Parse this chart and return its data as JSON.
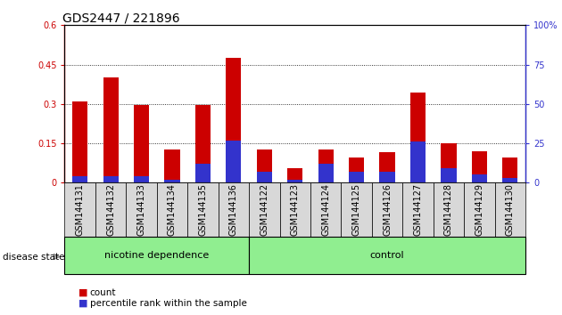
{
  "title": "GDS2447 / 221896",
  "samples": [
    "GSM144131",
    "GSM144132",
    "GSM144133",
    "GSM144134",
    "GSM144135",
    "GSM144136",
    "GSM144122",
    "GSM144123",
    "GSM144124",
    "GSM144125",
    "GSM144126",
    "GSM144127",
    "GSM144128",
    "GSM144129",
    "GSM144130"
  ],
  "count_values": [
    0.31,
    0.4,
    0.295,
    0.125,
    0.295,
    0.475,
    0.125,
    0.055,
    0.125,
    0.095,
    0.115,
    0.345,
    0.15,
    0.12,
    0.095
  ],
  "percentile_values": [
    4,
    4,
    4,
    2,
    12,
    27,
    7,
    2,
    12,
    7,
    7,
    26,
    9,
    5,
    3
  ],
  "groups": [
    {
      "label": "nicotine dependence",
      "start": 0,
      "end": 6,
      "color": "#90EE90"
    },
    {
      "label": "control",
      "start": 6,
      "end": 15,
      "color": "#90EE90"
    }
  ],
  "group_label_prefix": "disease state",
  "ylim_left": [
    0,
    0.6
  ],
  "ylim_right": [
    0,
    100
  ],
  "yticks_left": [
    0,
    0.15,
    0.3,
    0.45,
    0.6
  ],
  "yticks_right": [
    0,
    25,
    50,
    75,
    100
  ],
  "bar_color_count": "#cc0000",
  "bar_color_percentile": "#3333cc",
  "bar_width": 0.5,
  "title_fontsize": 10,
  "tick_fontsize": 7,
  "label_fontsize": 8
}
